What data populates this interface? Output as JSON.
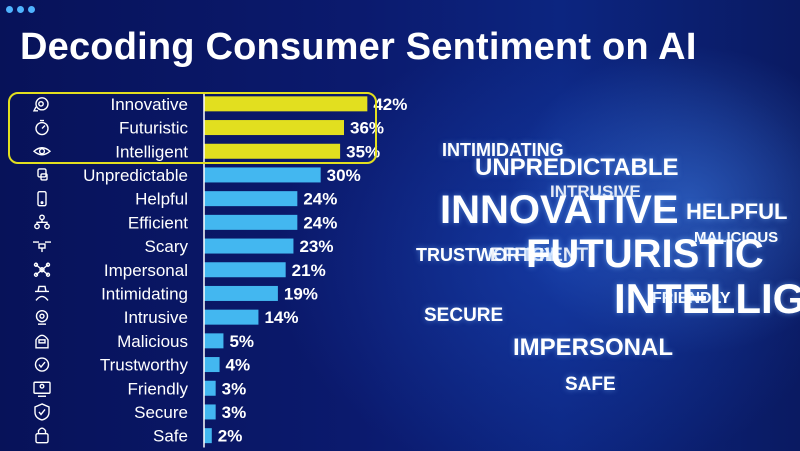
{
  "slide": {
    "title": "Decoding Consumer Sentiment on AI"
  },
  "colors": {
    "highlight_bar": "#e2df1f",
    "bar": "#43b7f0",
    "text": "#ffffff",
    "background": "#0a1660"
  },
  "chart_data": {
    "type": "bar",
    "orientation": "horizontal",
    "categories": [
      "Innovative",
      "Futuristic",
      "Intelligent",
      "Unpredictable",
      "Helpful",
      "Efficient",
      "Scary",
      "Impersonal",
      "Intimidating",
      "Intrusive",
      "Malicious",
      "Trustworthy",
      "Friendly",
      "Secure",
      "Safe"
    ],
    "values": [
      42,
      36,
      35,
      30,
      24,
      24,
      23,
      21,
      19,
      14,
      5,
      4,
      3,
      3,
      2
    ],
    "value_labels": [
      "42%",
      "36%",
      "35%",
      "30%",
      "24%",
      "24%",
      "23%",
      "21%",
      "19%",
      "14%",
      "5%",
      "4%",
      "3%",
      "3%",
      "2%"
    ],
    "highlighted": [
      "Innovative",
      "Futuristic",
      "Intelligent"
    ],
    "unit": "%",
    "xlim": [
      0,
      45
    ],
    "icons": [
      "brain-gear-icon",
      "stopwatch-icon",
      "eye-circuit-icon",
      "dice-icon",
      "phone-icon",
      "org-chart-icon",
      "drone-icon",
      "network-icon",
      "spy-icon",
      "webcam-icon",
      "hacker-icon",
      "verified-badge-icon",
      "monitor-user-icon",
      "shield-check-icon",
      "padlock-icon"
    ]
  },
  "word_cloud": [
    "INTIMIDATING",
    "UNPREDICTABLE",
    "INTRUSIVE",
    "INNOVATIVE",
    "HELPFUL",
    "MALICIOUS",
    "TRUSTWORTHY",
    "EFFICIENT",
    "FUTURISTIC",
    "FRIENDLY",
    "INTELLIG",
    "SECURE",
    "IMPERSONAL",
    "SAFE"
  ]
}
